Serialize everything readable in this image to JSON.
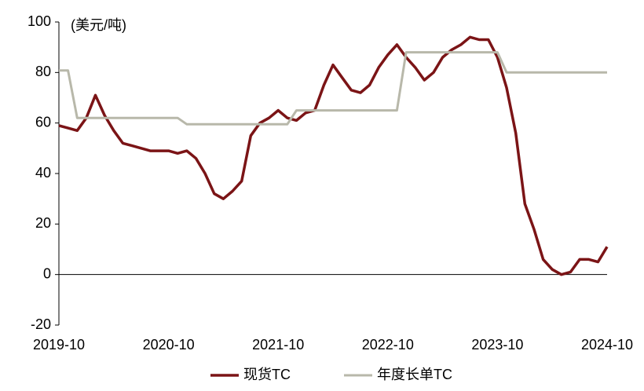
{
  "chart_data": {
    "type": "line",
    "y_label": "(美元/吨)",
    "categories": [
      "2019-10",
      null,
      null,
      null,
      null,
      null,
      null,
      null,
      null,
      null,
      null,
      null,
      "2020-10",
      null,
      null,
      null,
      null,
      null,
      null,
      null,
      null,
      null,
      null,
      null,
      "2021-10",
      null,
      null,
      null,
      null,
      null,
      null,
      null,
      null,
      null,
      null,
      null,
      "2022-10",
      null,
      null,
      null,
      null,
      null,
      null,
      null,
      null,
      null,
      null,
      null,
      "2023-10",
      null,
      null,
      null,
      null,
      null,
      null,
      null,
      null,
      null,
      null,
      null,
      "2024-10"
    ],
    "series": [
      {
        "name": "现货TC",
        "color": "#7b1416",
        "width": 3.5,
        "values": [
          59,
          58,
          57,
          62,
          71,
          63,
          57,
          52,
          51,
          50,
          49,
          49,
          49,
          48,
          49,
          46,
          40,
          32,
          30,
          33,
          37,
          55,
          60,
          62,
          65,
          62,
          61,
          64,
          65,
          75,
          83,
          78,
          73,
          72,
          75,
          82,
          87,
          91,
          86,
          82,
          77,
          80,
          86,
          89,
          91,
          94,
          93,
          93,
          86,
          74,
          56,
          28,
          18,
          6,
          2,
          0,
          1,
          6,
          6,
          5,
          11
        ]
      },
      {
        "name": "年度长单TC",
        "color": "#b8b8aa",
        "width": 3,
        "values": [
          80.8,
          80.8,
          62,
          62,
          62,
          62,
          62,
          62,
          62,
          62,
          62,
          62,
          62,
          62,
          59.5,
          59.5,
          59.5,
          59.5,
          59.5,
          59.5,
          59.5,
          59.5,
          59.5,
          59.5,
          59.5,
          59.5,
          65,
          65,
          65,
          65,
          65,
          65,
          65,
          65,
          65,
          65,
          65,
          65,
          88,
          88,
          88,
          88,
          88,
          88,
          88,
          88,
          88,
          88,
          88,
          80,
          80,
          80,
          80,
          80,
          80,
          80,
          80,
          80,
          80,
          80,
          80
        ]
      }
    ],
    "ylim": [
      -20,
      100
    ],
    "yticks": [
      -20,
      0,
      20,
      40,
      60,
      80,
      100
    ],
    "legend": "bottom"
  }
}
